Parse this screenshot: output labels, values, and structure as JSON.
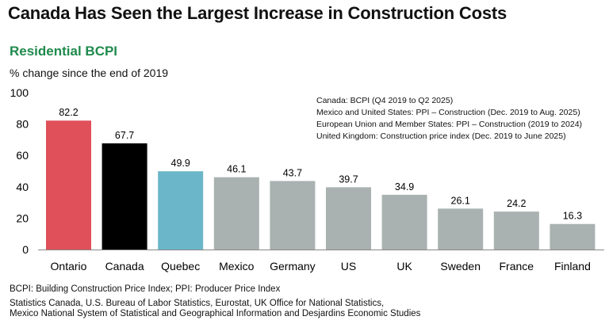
{
  "title": "Canada Has Seen the Largest Increase in Construction Costs",
  "subtitle": "Residential BCPI",
  "units": "% change since the end of 2019",
  "notes": [
    "Canada: BCPI (Q4 2019 to Q2 2025)",
    "Mexico and United States: PPI – Construction (Dec. 2019 to Aug. 2025)",
    "European Union and Member States: PPI – Construction (2019 to 2024)",
    "United Kingdom: Construction price index (Dec. 2019 to June 2025)"
  ],
  "footnote": "BCPI: Building Construction Price Index; PPI: Producer Price Index",
  "sources": [
    "Statistics Canada, U.S. Bureau of Labor Statistics, Eurostat, UK Office for National Statistics,",
    "Mexico National System of Statistical and Geographical Information and Desjardins Economic Studies"
  ],
  "chart_data": {
    "type": "bar",
    "categories": [
      "Ontario",
      "Canada",
      "Quebec",
      "Mexico",
      "Germany",
      "US",
      "UK",
      "Sweden",
      "France",
      "Finland"
    ],
    "values": [
      82.2,
      67.7,
      49.9,
      46.1,
      43.7,
      39.7,
      34.9,
      26.1,
      24.2,
      16.3
    ],
    "colors": [
      "#e0505a",
      "#000000",
      "#6bb7c9",
      "#a9b2b1",
      "#a9b2b1",
      "#a9b2b1",
      "#a9b2b1",
      "#a9b2b1",
      "#a9b2b1",
      "#a9b2b1"
    ],
    "ylim": [
      0,
      100
    ],
    "yticks": [
      0,
      20,
      40,
      60,
      80,
      100
    ],
    "grid": false,
    "data_labels": true
  }
}
